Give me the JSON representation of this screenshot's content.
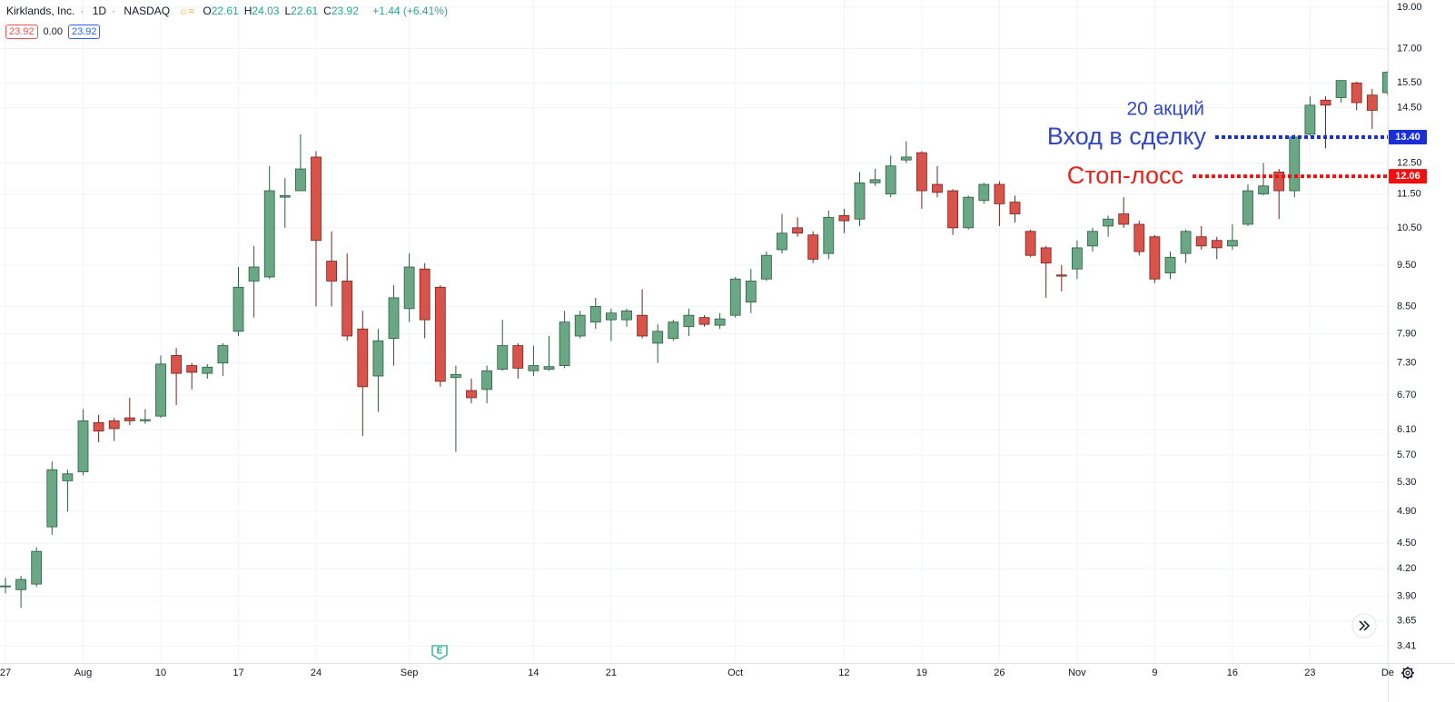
{
  "header": {
    "title": "Kirklands, Inc.",
    "interval": "1D",
    "exchange": "NASDAQ",
    "quote": [
      {
        "key": "O",
        "value": "22.61"
      },
      {
        "key": "H",
        "value": "24.03"
      },
      {
        "key": "L",
        "value": "22.61"
      },
      {
        "key": "C",
        "value": "23.92"
      }
    ],
    "change": "+1.44 (+6.41%)",
    "badges": [
      "23.92",
      "0.00",
      "23.92"
    ]
  },
  "chart_data": {
    "type": "candlestick",
    "log_scale": true,
    "grid": true,
    "up_color": "#6aa784",
    "down_color": "#d9534a",
    "categories": [
      "27",
      null,
      null,
      null,
      null,
      "Aug",
      null,
      null,
      null,
      null,
      "10",
      null,
      null,
      null,
      null,
      "17",
      null,
      null,
      null,
      null,
      "24",
      null,
      null,
      null,
      null,
      null,
      "Sep",
      null,
      null,
      null,
      null,
      null,
      null,
      null,
      "14",
      null,
      null,
      null,
      null,
      "21",
      null,
      null,
      null,
      null,
      null,
      null,
      null,
      "Oct",
      null,
      null,
      null,
      null,
      null,
      null,
      "12",
      null,
      null,
      null,
      null,
      "19",
      null,
      null,
      null,
      null,
      "26",
      null,
      null,
      null,
      null,
      "Nov",
      null,
      null,
      null,
      null,
      "9",
      null,
      null,
      null,
      null,
      "16",
      null,
      null,
      null,
      null,
      "23",
      null,
      null,
      null,
      null,
      "De"
    ],
    "open": [
      4.0,
      3.97,
      4.03,
      4.7,
      5.32,
      5.45,
      6.22,
      6.25,
      6.3,
      6.25,
      6.33,
      7.45,
      7.25,
      7.1,
      7.3,
      7.95,
      9.1,
      9.2,
      11.4,
      11.6,
      12.7,
      9.6,
      9.1,
      8.0,
      7.05,
      7.8,
      8.45,
      9.4,
      8.95,
      7.02,
      6.78,
      6.8,
      7.18,
      7.65,
      7.15,
      7.18,
      7.25,
      7.85,
      8.15,
      8.2,
      8.2,
      8.3,
      7.7,
      7.8,
      8.05,
      8.25,
      8.08,
      8.3,
      8.6,
      9.15,
      9.9,
      10.5,
      10.3,
      9.8,
      10.85,
      10.75,
      11.85,
      11.5,
      12.6,
      12.85,
      11.8,
      11.6,
      10.5,
      11.3,
      11.8,
      11.25,
      10.4,
      9.95,
      9.25,
      9.4,
      10.0,
      10.55,
      10.9,
      10.6,
      10.25,
      9.3,
      9.8,
      10.25,
      10.15,
      10.0,
      10.6,
      11.5,
      12.2,
      11.6,
      13.5,
      14.8,
      14.9,
      15.5,
      15.0,
      15.1
    ],
    "high": [
      4.1,
      4.12,
      4.45,
      5.6,
      5.48,
      6.45,
      6.35,
      6.3,
      6.65,
      6.45,
      7.45,
      7.6,
      7.3,
      7.28,
      7.7,
      9.45,
      10.0,
      12.4,
      12.0,
      13.5,
      12.9,
      10.4,
      9.8,
      8.4,
      8.0,
      9.0,
      9.8,
      9.55,
      9.0,
      7.25,
      7.0,
      7.25,
      8.2,
      7.7,
      7.65,
      7.85,
      8.4,
      8.4,
      8.7,
      8.45,
      8.45,
      8.9,
      8.1,
      8.2,
      8.45,
      8.3,
      8.35,
      9.2,
      9.4,
      9.85,
      10.9,
      10.8,
      10.4,
      11.0,
      11.05,
      12.2,
      12.3,
      12.75,
      13.25,
      12.9,
      12.4,
      11.65,
      11.45,
      11.85,
      11.9,
      11.45,
      10.45,
      10.0,
      9.5,
      10.15,
      10.5,
      10.85,
      11.4,
      10.7,
      10.3,
      9.85,
      10.45,
      10.55,
      10.25,
      10.6,
      11.8,
      12.5,
      12.3,
      13.5,
      14.95,
      14.95,
      15.6,
      15.55,
      15.25,
      16.0
    ],
    "low": [
      3.93,
      3.78,
      4.0,
      4.6,
      4.9,
      5.4,
      5.9,
      5.92,
      6.18,
      6.2,
      6.3,
      6.52,
      6.8,
      7.0,
      7.05,
      7.85,
      8.25,
      9.15,
      10.5,
      11.6,
      8.5,
      8.5,
      7.75,
      6.0,
      6.4,
      7.25,
      8.15,
      7.8,
      6.85,
      5.75,
      6.55,
      6.55,
      7.15,
      7.0,
      7.05,
      7.15,
      7.2,
      7.8,
      8.0,
      7.75,
      8.05,
      7.8,
      7.3,
      7.75,
      7.85,
      8.05,
      8.0,
      8.25,
      8.35,
      9.1,
      9.8,
      10.25,
      9.55,
      9.65,
      10.35,
      10.55,
      11.75,
      11.4,
      12.5,
      11.05,
      11.4,
      10.3,
      10.45,
      11.2,
      10.55,
      10.65,
      9.7,
      8.7,
      8.85,
      9.15,
      9.85,
      10.25,
      10.5,
      9.75,
      9.05,
      9.15,
      9.55,
      9.9,
      9.65,
      9.9,
      10.55,
      11.45,
      10.75,
      11.4,
      13.45,
      13.0,
      14.7,
      14.4,
      13.7,
      15.0
    ],
    "close": [
      4.01,
      4.08,
      4.4,
      5.48,
      5.42,
      6.25,
      6.08,
      6.12,
      6.25,
      6.27,
      7.28,
      7.1,
      7.12,
      7.22,
      7.65,
      8.95,
      9.45,
      11.6,
      11.45,
      12.3,
      10.15,
      9.1,
      7.85,
      6.85,
      7.75,
      8.7,
      9.45,
      8.2,
      6.95,
      7.08,
      6.65,
      7.15,
      7.65,
      7.2,
      7.25,
      7.23,
      8.15,
      8.3,
      8.5,
      8.35,
      8.4,
      7.85,
      7.95,
      8.15,
      8.3,
      8.1,
      8.22,
      9.15,
      9.1,
      9.75,
      10.35,
      10.35,
      9.65,
      10.8,
      10.7,
      11.85,
      11.95,
      12.4,
      12.7,
      11.6,
      11.55,
      10.5,
      11.4,
      11.8,
      11.2,
      10.9,
      9.75,
      9.55,
      9.22,
      9.95,
      10.4,
      10.75,
      10.6,
      9.85,
      9.15,
      9.7,
      10.4,
      10.0,
      9.95,
      10.15,
      11.6,
      11.75,
      11.6,
      13.4,
      14.6,
      14.6,
      15.6,
      14.7,
      14.4,
      15.95
    ],
    "ylim": [
      3.26,
      19.37
    ],
    "yticks": [
      {
        "value": 19,
        "label": "19.00"
      },
      {
        "value": 17,
        "label": "17.00"
      },
      {
        "value": 15.5,
        "label": "15.50"
      },
      {
        "value": 14.5,
        "label": "14.50"
      },
      {
        "value": 12.5,
        "label": "12.50"
      },
      {
        "value": 11.5,
        "label": "11.50"
      },
      {
        "value": 10.5,
        "label": "10.50"
      },
      {
        "value": 9.5,
        "label": "9.50"
      },
      {
        "value": 8.5,
        "label": "8.50"
      },
      {
        "value": 7.9,
        "label": "7.90"
      },
      {
        "value": 7.3,
        "label": "7.30"
      },
      {
        "value": 6.7,
        "label": "6.70"
      },
      {
        "value": 6.1,
        "label": "6.10"
      },
      {
        "value": 5.7,
        "label": "5.70"
      },
      {
        "value": 5.3,
        "label": "5.30"
      },
      {
        "value": 4.9,
        "label": "4.90"
      },
      {
        "value": 4.5,
        "label": "4.50"
      },
      {
        "value": 4.2,
        "label": "4.20"
      },
      {
        "value": 3.9,
        "label": "3.90"
      },
      {
        "value": 3.65,
        "label": "3.65"
      },
      {
        "value": 3.41,
        "label": "3.41"
      }
    ],
    "levels": [
      {
        "value": 13.4,
        "label": "13.40",
        "text": "Вход в сделку",
        "note": "20 акций",
        "color": "#1a2fd6",
        "text_color": "#3346c4"
      },
      {
        "value": 12.06,
        "label": "12.06",
        "text": "Стоп-лосс",
        "color": "#f01010",
        "text_color": "#e8231b"
      }
    ]
  }
}
